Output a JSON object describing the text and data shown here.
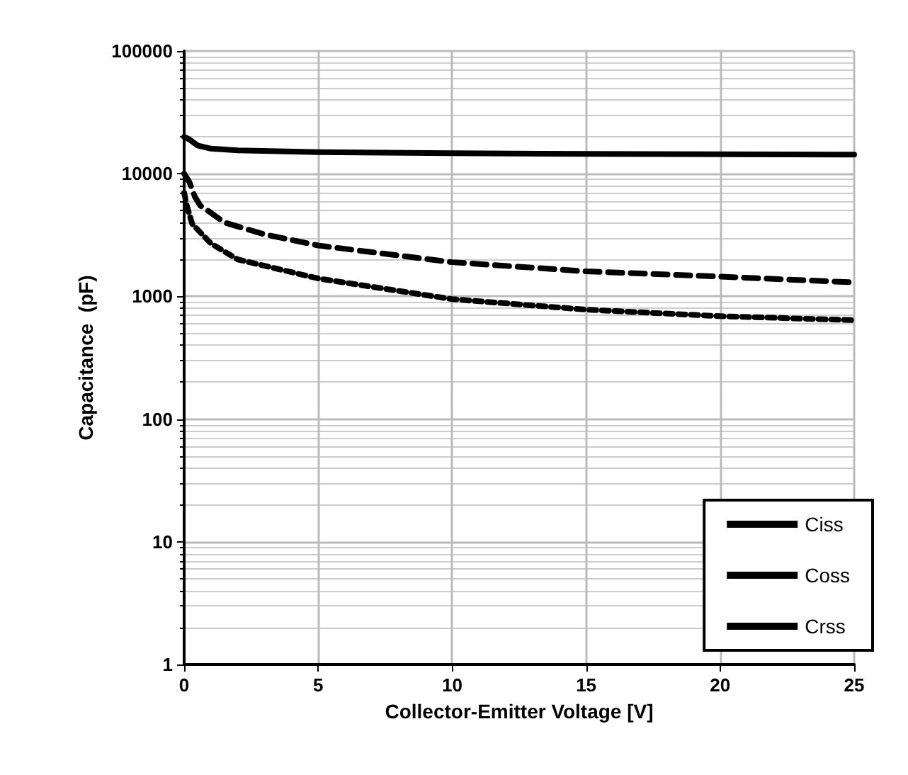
{
  "chart_data": {
    "type": "line",
    "xlabel": "Collector-Emitter Voltage [V]",
    "ylabel": "Capacitance  (pF)",
    "log": "y",
    "grid": true,
    "legend": "bottom right",
    "marker": "none",
    "xlim": [
      0,
      25
    ],
    "xticks": [
      0,
      5,
      10,
      15,
      20,
      25
    ],
    "ylim": [
      1,
      100000
    ],
    "yticks": [
      1,
      10,
      100,
      1000,
      10000,
      100000
    ],
    "series": [
      {
        "name": "Ciss",
        "color": "#000000",
        "line_style": "solid",
        "x": [
          0,
          0.2,
          0.5,
          1,
          2,
          5,
          10,
          15,
          20,
          25
        ],
        "values": [
          20000,
          19000,
          17000,
          16000,
          15500,
          15000,
          14700,
          14500,
          14400,
          14300
        ]
      },
      {
        "name": "Coss",
        "color": "#000000",
        "line_style": "dashed",
        "x": [
          0,
          0.2,
          0.4,
          0.6,
          1,
          1.5,
          3,
          5,
          10,
          15,
          20,
          25
        ],
        "values": [
          10000,
          8500,
          6500,
          5500,
          4800,
          4000,
          3200,
          2600,
          1900,
          1600,
          1450,
          1300
        ]
      },
      {
        "name": "Crss",
        "color": "#000000",
        "line_style": "dotted",
        "x": [
          0,
          0.1,
          0.3,
          1,
          2,
          5,
          10,
          15,
          20,
          25
        ],
        "values": [
          7000,
          5500,
          3900,
          2700,
          2000,
          1400,
          950,
          780,
          690,
          640
        ]
      }
    ]
  }
}
